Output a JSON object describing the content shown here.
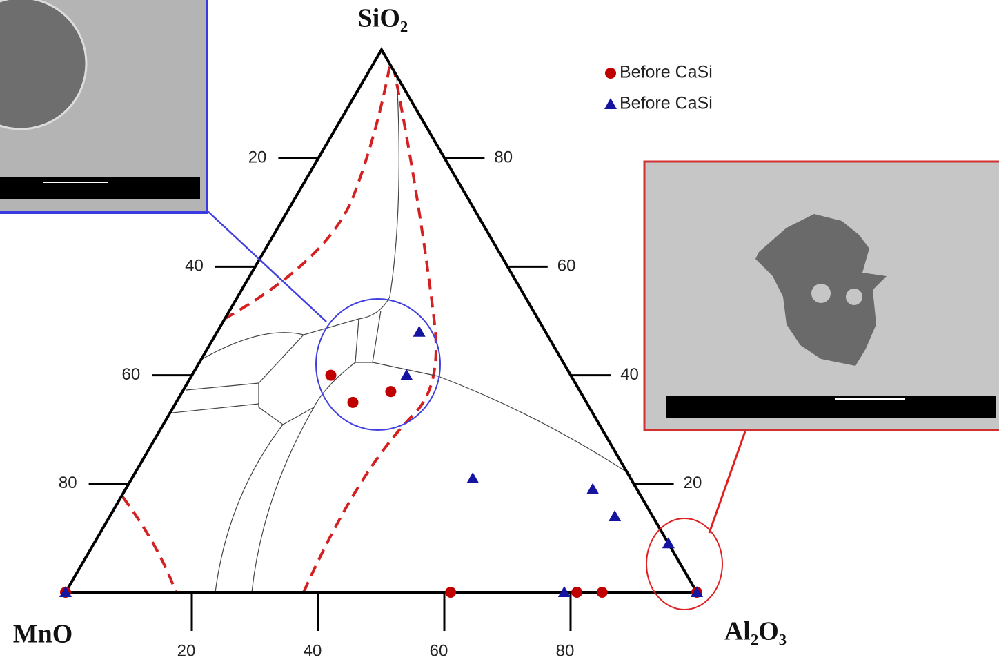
{
  "chart_data": {
    "type": "ternary",
    "apex_labels": {
      "top": "SiO₂",
      "left": "MnO",
      "right": "Al₂O₃"
    },
    "lim": [
      0,
      100
    ],
    "left_ticks": [
      20,
      40,
      60,
      80
    ],
    "right_ticks": [
      20,
      40,
      60,
      80
    ],
    "bottom_ticks": [
      20,
      40,
      60,
      80
    ],
    "series": [
      {
        "name": "Before CaSi",
        "marker": "circle",
        "color": "#c00000",
        "sio2": [
          40,
          35,
          37,
          0,
          0,
          0,
          0,
          0
        ],
        "al2o3": [
          22,
          28,
          33,
          61,
          81,
          85,
          100,
          0
        ],
        "mno": [
          38,
          37,
          30,
          39,
          19,
          15,
          0,
          100
        ]
      },
      {
        "name": "Before CaSi",
        "marker": "triangle",
        "color": "#1414a0",
        "sio2": [
          48,
          40,
          21,
          19,
          14,
          9,
          0,
          0,
          0
        ],
        "al2o3": [
          32,
          34,
          54,
          74,
          80,
          91,
          79,
          100,
          0
        ],
        "mno": [
          20,
          26,
          25,
          7,
          6,
          0,
          21,
          0,
          100
        ]
      }
    ]
  }
}
